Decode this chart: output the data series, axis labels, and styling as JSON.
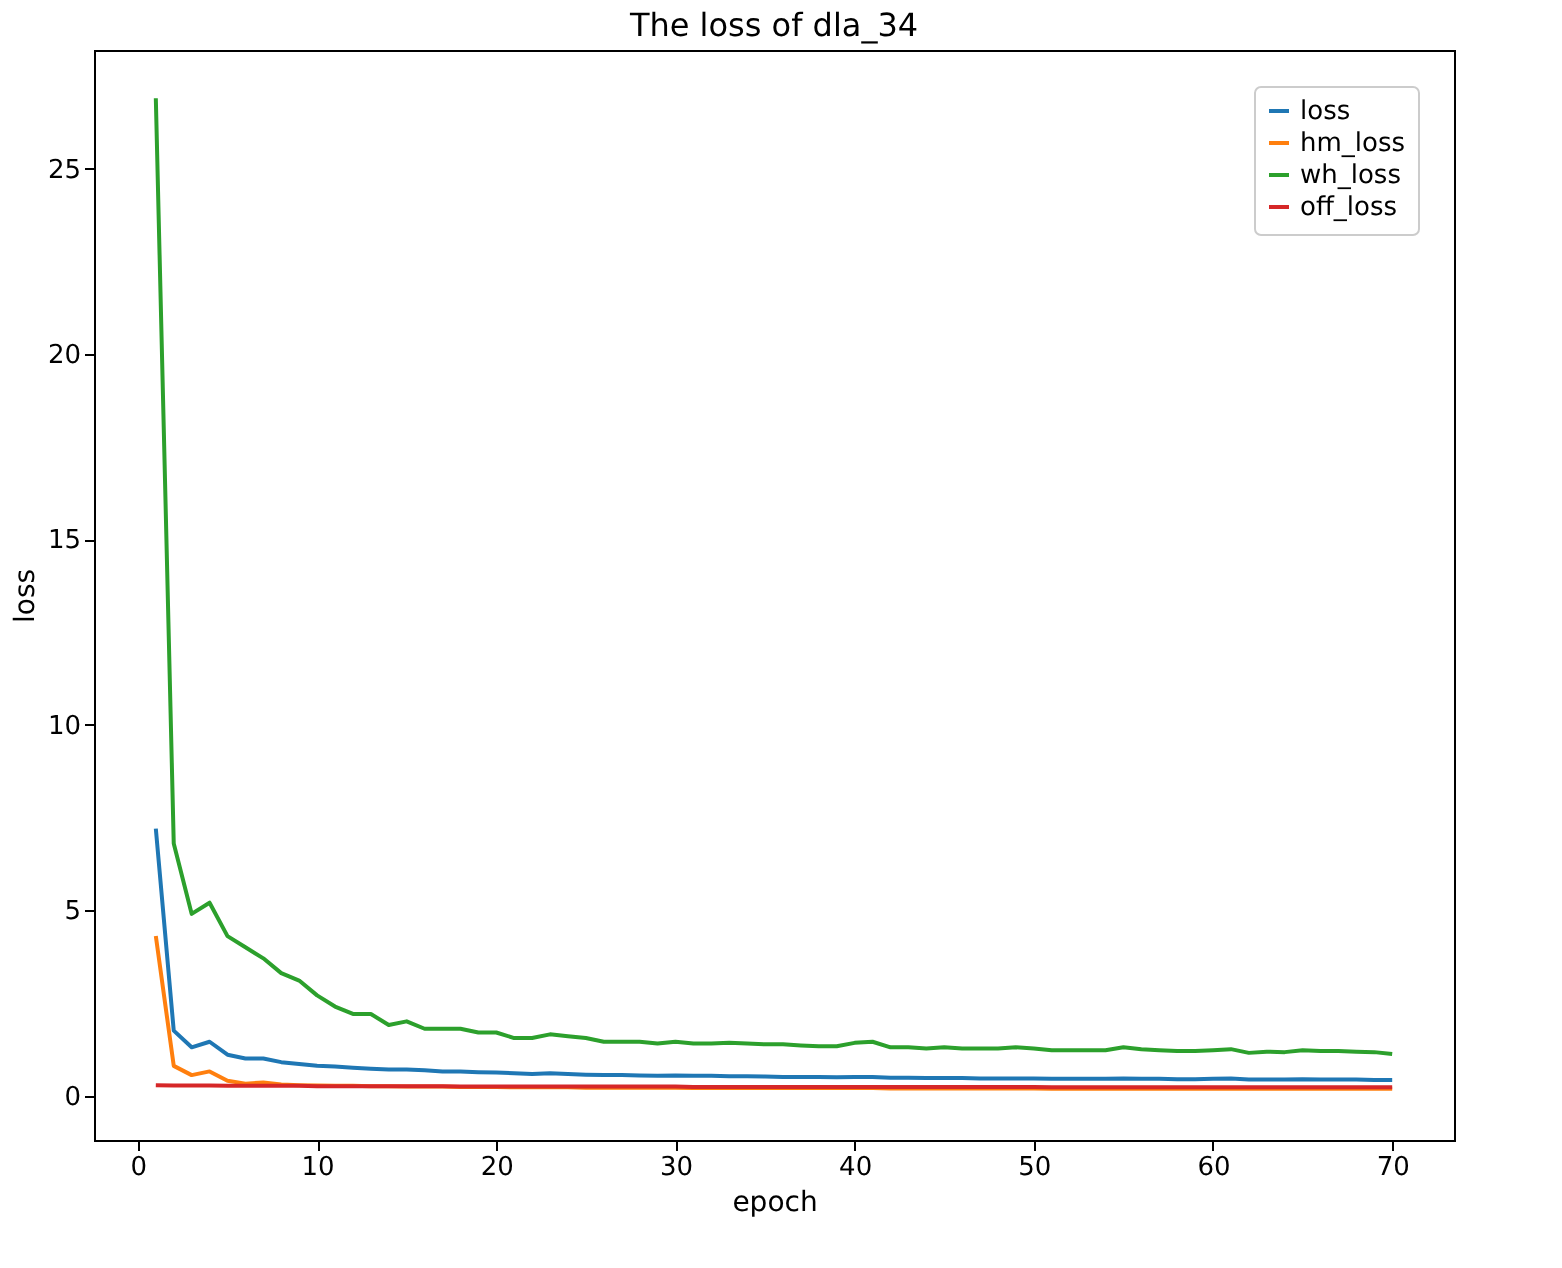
{
  "chart_data": {
    "type": "line",
    "title": "The loss of dla_34",
    "xlabel": "epoch",
    "ylabel": "loss",
    "x": [
      1,
      2,
      3,
      4,
      5,
      6,
      7,
      8,
      9,
      10,
      11,
      12,
      13,
      14,
      15,
      16,
      17,
      18,
      19,
      20,
      21,
      22,
      23,
      24,
      25,
      26,
      27,
      28,
      29,
      30,
      31,
      32,
      33,
      34,
      35,
      36,
      37,
      38,
      39,
      40,
      41,
      42,
      43,
      44,
      45,
      46,
      47,
      48,
      49,
      50,
      51,
      52,
      53,
      54,
      55,
      56,
      57,
      58,
      59,
      60,
      61,
      62,
      63,
      64,
      65,
      66,
      67,
      68,
      69,
      70
    ],
    "series": [
      {
        "name": "loss",
        "color": "#1f77b4",
        "values": [
          7.2,
          1.75,
          1.3,
          1.45,
          1.1,
          1.0,
          1.0,
          0.9,
          0.85,
          0.8,
          0.78,
          0.75,
          0.72,
          0.7,
          0.7,
          0.68,
          0.65,
          0.65,
          0.63,
          0.62,
          0.6,
          0.58,
          0.6,
          0.58,
          0.56,
          0.55,
          0.55,
          0.54,
          0.53,
          0.54,
          0.53,
          0.53,
          0.52,
          0.52,
          0.51,
          0.5,
          0.5,
          0.5,
          0.49,
          0.5,
          0.5,
          0.48,
          0.48,
          0.47,
          0.47,
          0.47,
          0.46,
          0.46,
          0.46,
          0.46,
          0.45,
          0.45,
          0.45,
          0.45,
          0.46,
          0.45,
          0.45,
          0.44,
          0.44,
          0.45,
          0.46,
          0.43,
          0.43,
          0.43,
          0.44,
          0.43,
          0.43,
          0.43,
          0.42,
          0.42
        ]
      },
      {
        "name": "hm_loss",
        "color": "#ff7f0e",
        "values": [
          4.3,
          0.8,
          0.55,
          0.65,
          0.4,
          0.32,
          0.35,
          0.3,
          0.28,
          0.27,
          0.26,
          0.26,
          0.25,
          0.25,
          0.24,
          0.24,
          0.24,
          0.23,
          0.23,
          0.23,
          0.22,
          0.22,
          0.22,
          0.22,
          0.21,
          0.21,
          0.21,
          0.21,
          0.21,
          0.21,
          0.2,
          0.2,
          0.2,
          0.2,
          0.2,
          0.2,
          0.2,
          0.2,
          0.2,
          0.2,
          0.2,
          0.19,
          0.19,
          0.19,
          0.19,
          0.19,
          0.19,
          0.19,
          0.19,
          0.19,
          0.18,
          0.18,
          0.18,
          0.18,
          0.18,
          0.18,
          0.18,
          0.18,
          0.18,
          0.18,
          0.18,
          0.18,
          0.18,
          0.18,
          0.18,
          0.18,
          0.18,
          0.18,
          0.18,
          0.18
        ]
      },
      {
        "name": "wh_loss",
        "color": "#2ca02c",
        "values": [
          26.9,
          6.8,
          4.9,
          5.2,
          4.3,
          4.0,
          3.7,
          3.3,
          3.1,
          2.7,
          2.4,
          2.2,
          2.2,
          1.9,
          2.0,
          1.8,
          1.8,
          1.8,
          1.7,
          1.7,
          1.55,
          1.55,
          1.65,
          1.6,
          1.55,
          1.45,
          1.45,
          1.45,
          1.4,
          1.45,
          1.4,
          1.4,
          1.42,
          1.4,
          1.38,
          1.38,
          1.35,
          1.33,
          1.33,
          1.42,
          1.45,
          1.3,
          1.3,
          1.27,
          1.3,
          1.27,
          1.27,
          1.27,
          1.3,
          1.27,
          1.22,
          1.22,
          1.22,
          1.22,
          1.3,
          1.25,
          1.22,
          1.2,
          1.2,
          1.22,
          1.25,
          1.15,
          1.18,
          1.17,
          1.22,
          1.2,
          1.2,
          1.18,
          1.17,
          1.12
        ]
      },
      {
        "name": "off_loss",
        "color": "#d62728",
        "values": [
          0.28,
          0.27,
          0.27,
          0.27,
          0.26,
          0.26,
          0.26,
          0.26,
          0.26,
          0.25,
          0.25,
          0.25,
          0.25,
          0.25,
          0.25,
          0.25,
          0.25,
          0.24,
          0.24,
          0.24,
          0.24,
          0.24,
          0.24,
          0.24,
          0.24,
          0.24,
          0.24,
          0.24,
          0.24,
          0.24,
          0.23,
          0.23,
          0.23,
          0.23,
          0.23,
          0.23,
          0.23,
          0.23,
          0.23,
          0.23,
          0.23,
          0.23,
          0.23,
          0.23,
          0.23,
          0.23,
          0.23,
          0.23,
          0.23,
          0.23,
          0.22,
          0.22,
          0.22,
          0.22,
          0.22,
          0.22,
          0.22,
          0.22,
          0.22,
          0.22,
          0.22,
          0.22,
          0.22,
          0.22,
          0.22,
          0.22,
          0.22,
          0.22,
          0.22,
          0.22
        ]
      }
    ],
    "xlim": [
      -2.45,
      73.45
    ],
    "ylim": [
      -1.2,
      28.2
    ],
    "xticks": [
      0,
      10,
      20,
      30,
      40,
      50,
      60,
      70
    ],
    "yticks": [
      0,
      5,
      10,
      15,
      20,
      25
    ],
    "legend": "top right",
    "grid": false
  }
}
